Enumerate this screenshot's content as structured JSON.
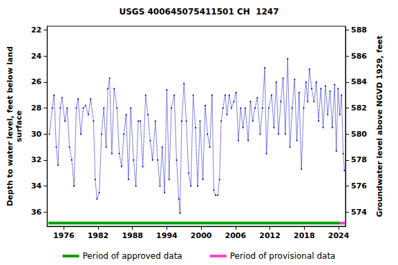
{
  "chart_data": {
    "type": "line",
    "title": "USGS 400645075411501 CH  1247",
    "y_label": "Depth to water level, feet below land\nsurface",
    "y2_label": "Groundwater level above NGVD 1929, feet",
    "xlim": [
      1973.1,
      2025.2
    ],
    "xticks": [
      1976,
      1982,
      1988,
      1994,
      2000,
      2006,
      2012,
      2018,
      2024
    ],
    "ylim": [
      37.1,
      21.7
    ],
    "yticks": [
      22,
      24,
      26,
      28,
      30,
      32,
      34,
      36
    ],
    "y2lim": [
      572.9,
      588.3
    ],
    "y2ticks": [
      574,
      576,
      578,
      580,
      582,
      584,
      586,
      588
    ],
    "grid": false,
    "legend": "bottom",
    "series": [
      {
        "color": "#0000cc",
        "line_style": "dotted",
        "marker": "circle",
        "x": [
          1973.5,
          1974,
          1974.3,
          1974.7,
          1975,
          1975.4,
          1975.7,
          1976.2,
          1976.6,
          1977,
          1977.4,
          1977.8,
          1978.2,
          1978.5,
          1979,
          1979.4,
          1979.8,
          1980.3,
          1980.7,
          1981.2,
          1981.5,
          1981.8,
          1982.2,
          1982.6,
          1983,
          1983.4,
          1983.7,
          1984,
          1984.4,
          1984.8,
          1985.3,
          1985.7,
          1986.1,
          1986.5,
          1986.9,
          1987.3,
          1987.7,
          1988.2,
          1988.6,
          1989,
          1989.4,
          1989.8,
          1990.3,
          1990.7,
          1991.1,
          1991.5,
          1992,
          1992.4,
          1992.8,
          1993.2,
          1993.6,
          1994,
          1994.4,
          1994.8,
          1995.3,
          1995.7,
          1996.1,
          1996.3,
          1996.6,
          1997,
          1997.4,
          1997.8,
          1998.2,
          1998.6,
          1999,
          1999.4,
          1999.8,
          2000.3,
          2000.7,
          2001.1,
          2001.5,
          2001.9,
          2002.2,
          2002.5,
          2002.9,
          2003.2,
          2003.5,
          2003.8,
          2004.2,
          2004.5,
          2004.9,
          2005.3,
          2005.7,
          2006.1,
          2006.5,
          2006.9,
          2007.3,
          2007.7,
          2008.2,
          2008.6,
          2009,
          2009.4,
          2009.8,
          2010.3,
          2010.7,
          2011.1,
          2011.4,
          2011.8,
          2012.3,
          2012.7,
          2013.1,
          2013.5,
          2013.9,
          2014.3,
          2014.7,
          2015.1,
          2015.5,
          2015.9,
          2016.3,
          2016.7,
          2017.1,
          2017.5,
          2017.9,
          2018.3,
          2018.6,
          2018.9,
          2019.3,
          2019.7,
          2020.1,
          2020.5,
          2020.9,
          2021.3,
          2021.7,
          2022.1,
          2022.5,
          2022.9,
          2023.3,
          2023.6,
          2023.9,
          2024.2,
          2024.5,
          2024.8,
          2025
        ],
        "values": [
          30,
          28,
          27,
          31,
          32.4,
          28,
          27.2,
          29,
          28,
          31,
          32,
          34,
          28,
          27.3,
          30,
          28,
          27.8,
          28.5,
          27.3,
          29,
          33.5,
          35,
          34.5,
          30,
          28,
          31,
          26.5,
          25.7,
          31.5,
          26.5,
          28,
          31.5,
          32.5,
          30,
          28.5,
          33.5,
          28,
          32,
          34,
          29,
          29,
          32.5,
          27,
          28.5,
          30.5,
          32,
          29,
          32,
          34,
          31,
          34.5,
          26.6,
          33.5,
          28,
          27,
          32,
          35,
          36.1,
          29,
          26.1,
          29,
          33,
          34,
          27,
          29.5,
          34,
          29,
          33.5,
          27.8,
          30,
          31,
          27,
          34.3,
          34.7,
          34.7,
          33.5,
          29,
          28,
          27,
          28.5,
          27,
          28,
          27.5,
          26.8,
          30.5,
          28,
          29.5,
          28,
          30.5,
          27.5,
          29,
          28,
          27.2,
          30,
          28,
          24.9,
          31.5,
          28,
          27,
          29.5,
          26,
          30,
          27.5,
          25.7,
          30,
          24.2,
          31,
          28,
          25.8,
          30.5,
          26.8,
          32.7,
          28,
          26,
          27.5,
          25,
          26.5,
          27.5,
          26,
          29,
          26.5,
          29.5,
          26.3,
          28.5,
          26.7,
          29.5,
          26.2,
          31.3,
          26.5,
          28.5,
          27,
          31.5,
          32.8
        ]
      }
    ],
    "periods": [
      {
        "name": "Period of approved data",
        "color": "#00a000",
        "start": 1973.3,
        "end": 2024.3,
        "y": 36.85
      },
      {
        "name": "Period of provisional data",
        "color": "#ff40d0",
        "start": 2024.3,
        "end": 2025.2,
        "y": 36.85
      }
    ]
  }
}
